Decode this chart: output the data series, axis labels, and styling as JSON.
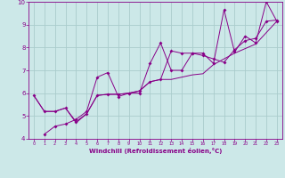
{
  "title": "",
  "xlabel": "Windchill (Refroidissement éolien,°C)",
  "xlim": [
    -0.5,
    23.5
  ],
  "ylim": [
    4,
    10
  ],
  "xticks": [
    0,
    1,
    2,
    3,
    4,
    5,
    6,
    7,
    8,
    9,
    10,
    11,
    12,
    13,
    14,
    15,
    16,
    17,
    18,
    19,
    20,
    21,
    22,
    23
  ],
  "yticks": [
    4,
    5,
    6,
    7,
    8,
    9,
    10
  ],
  "background_color": "#cce8e8",
  "grid_color": "#aacccc",
  "line_color": "#880088",
  "line1_x": [
    0,
    1,
    2,
    3,
    4,
    5,
    6,
    7,
    8,
    9,
    10,
    11,
    12,
    13,
    14,
    15,
    16,
    17,
    18,
    19,
    20,
    21,
    22,
    23
  ],
  "line1_y": [
    5.9,
    5.2,
    5.2,
    5.35,
    4.75,
    5.1,
    5.9,
    5.95,
    5.95,
    6.0,
    6.1,
    6.5,
    6.6,
    7.85,
    7.75,
    7.75,
    7.65,
    7.5,
    7.35,
    7.9,
    8.3,
    8.4,
    9.15,
    9.2
  ],
  "line2_x": [
    1,
    2,
    3,
    4,
    5,
    6,
    7,
    8,
    9,
    10,
    11,
    12,
    13,
    14,
    15,
    16,
    17,
    18,
    19,
    20,
    21,
    22,
    23
  ],
  "line2_y": [
    4.2,
    4.55,
    4.65,
    4.85,
    5.2,
    6.7,
    6.9,
    5.85,
    6.0,
    6.0,
    7.3,
    8.2,
    7.0,
    7.0,
    7.75,
    7.75,
    7.3,
    9.65,
    7.8,
    8.5,
    8.2,
    10.0,
    9.15
  ],
  "line3_x": [
    0,
    1,
    2,
    3,
    4,
    5,
    6,
    7,
    8,
    9,
    10,
    11,
    12,
    13,
    14,
    15,
    16,
    17,
    18,
    19,
    20,
    21,
    22,
    23
  ],
  "line3_y": [
    5.9,
    5.2,
    5.2,
    5.35,
    4.7,
    5.1,
    5.9,
    5.95,
    5.95,
    6.0,
    6.1,
    6.5,
    6.6,
    6.6,
    6.7,
    6.8,
    6.85,
    7.25,
    7.5,
    7.75,
    7.95,
    8.15,
    8.65,
    9.15
  ]
}
